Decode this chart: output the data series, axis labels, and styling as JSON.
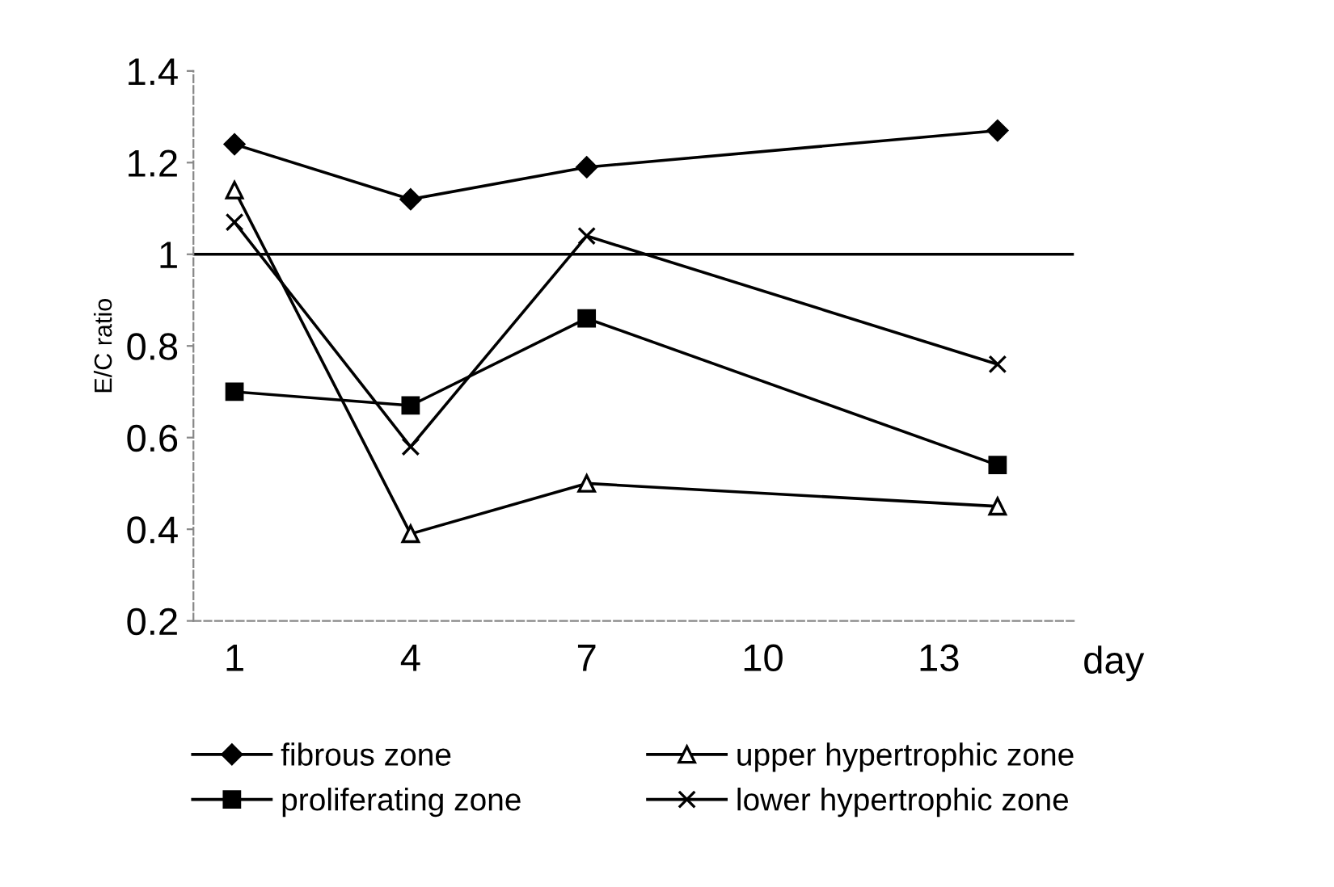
{
  "chart_data": {
    "type": "line",
    "xlabel": "day",
    "ylabel": "E/C ratio",
    "x": [
      1,
      4,
      7,
      14
    ],
    "series": [
      {
        "name": "fibrous zone",
        "color": "#000000",
        "marker": "diamond",
        "values": [
          1.24,
          1.12,
          1.19,
          1.27
        ]
      },
      {
        "name": "proliferating zone",
        "color": "#000000",
        "marker": "square",
        "values": [
          0.7,
          0.67,
          0.86,
          0.54
        ]
      },
      {
        "name": "upper hypertrophic zone",
        "color": "#000000",
        "marker": "triangle",
        "values": [
          1.14,
          0.39,
          0.5,
          0.45
        ]
      },
      {
        "name": "lower hypertrophic zone",
        "color": "#000000",
        "marker": "cross",
        "values": [
          1.07,
          0.58,
          1.04,
          0.76
        ]
      }
    ],
    "xlim": [
      0.3,
      15.3
    ],
    "xticks": [
      1,
      4,
      7,
      10,
      13
    ],
    "ylim": [
      0.2,
      1.4
    ],
    "yticks": [
      0.2,
      0.4,
      0.6,
      0.8,
      {
        "value": 1.0,
        "label": "1"
      },
      1.2,
      1.4
    ],
    "ref_lines": [
      {
        "axis": "y",
        "value": 1.0,
        "color": "#000000"
      }
    ],
    "grid": false,
    "legend": "bottom",
    "line_style": "solid"
  }
}
